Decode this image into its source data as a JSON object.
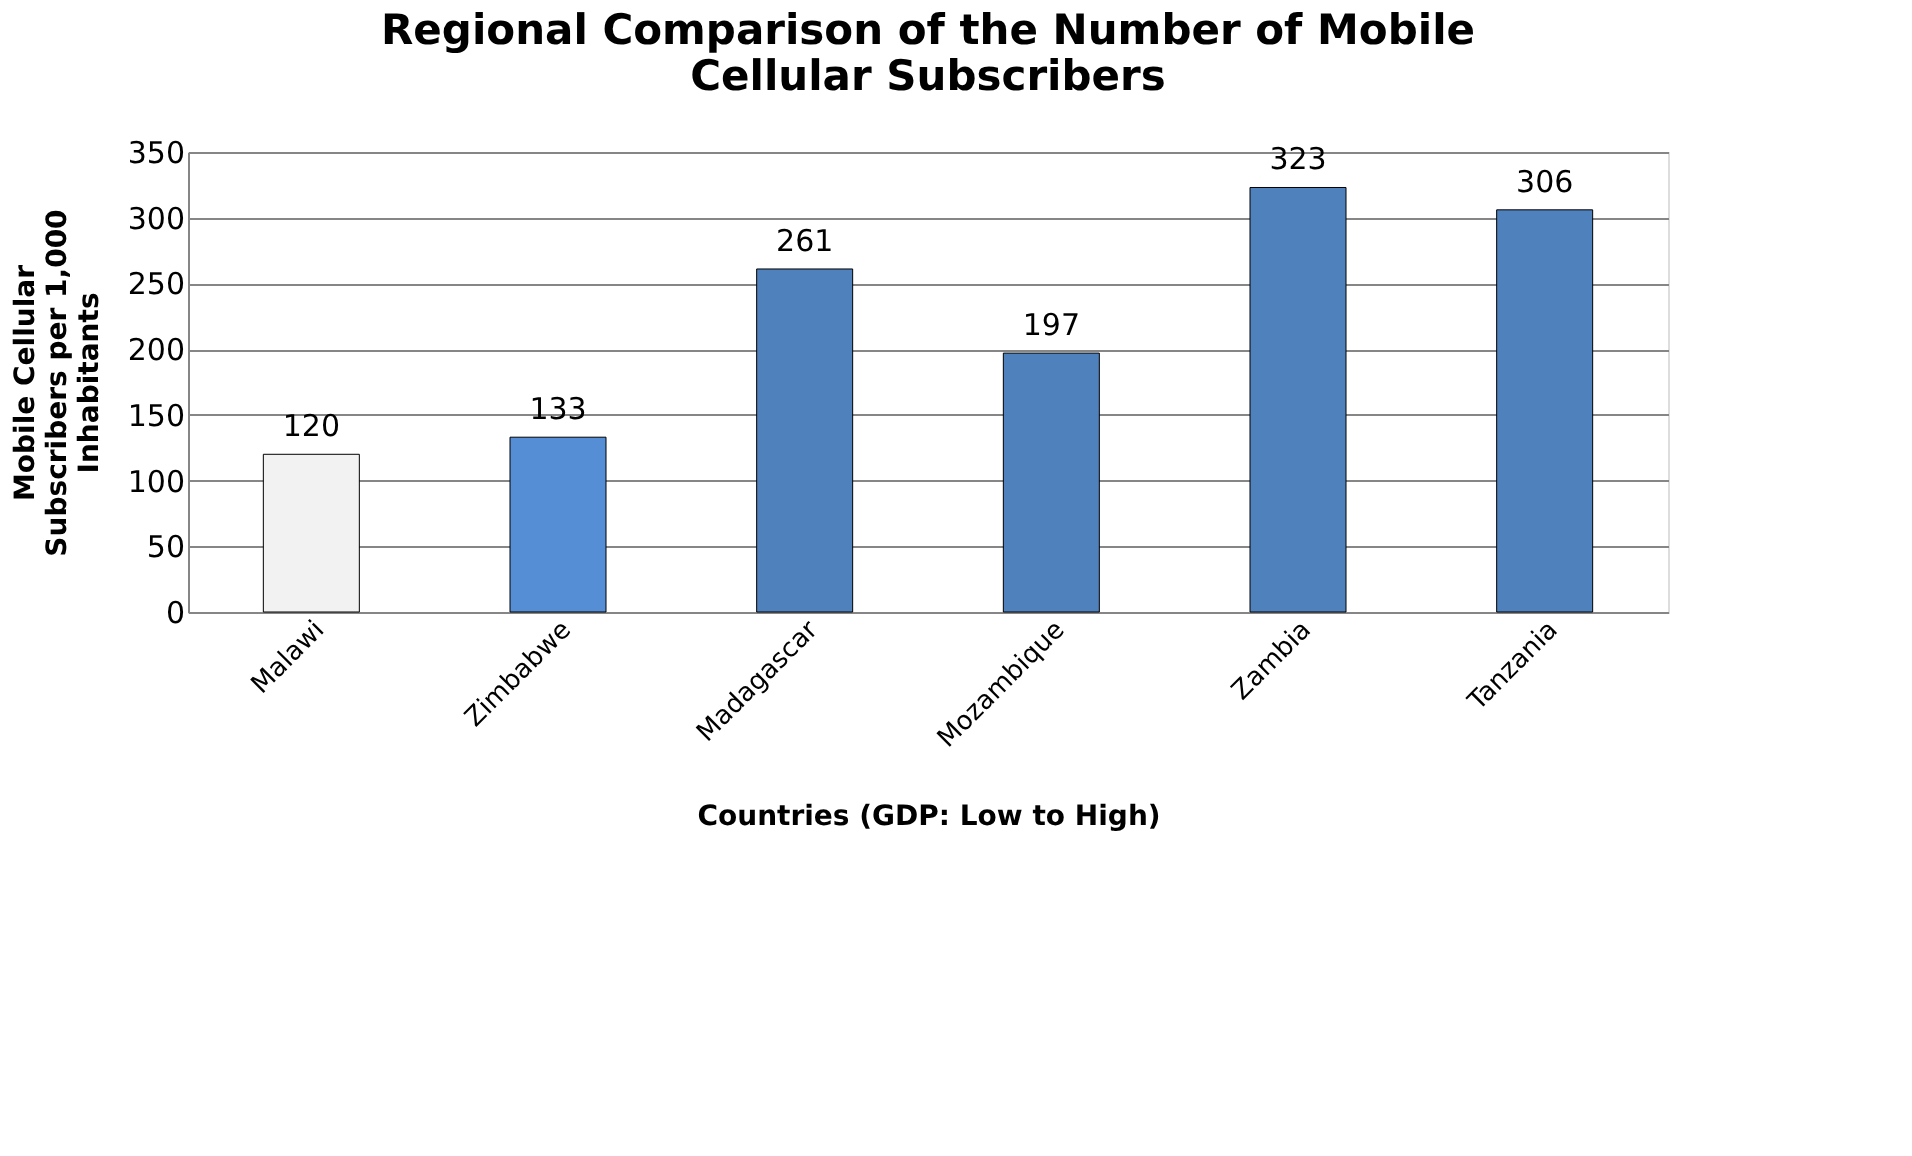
{
  "chart_data": {
    "type": "bar",
    "title": "Regional Comparison of the Number of Mobile Cellular Subscribers",
    "xlabel": "Countries (GDP: Low to High)",
    "ylabel": "Mobile Cellular Subscribers per 1,000 Inhabitants",
    "categories": [
      "Malawi",
      "Zimbabwe",
      "Madagascar",
      "Mozambique",
      "Zambia",
      "Tanzania"
    ],
    "values": [
      120,
      133,
      261,
      197,
      323,
      306
    ],
    "colors": [
      "#f2f2f2",
      "#558ed5",
      "#4f81bd",
      "#4f81bd",
      "#4f81bd",
      "#4f81bd"
    ],
    "ylim": [
      0,
      350
    ],
    "yticks": [
      0,
      50,
      100,
      150,
      200,
      250,
      300,
      350
    ],
    "grid": "y",
    "data_labels": true
  }
}
